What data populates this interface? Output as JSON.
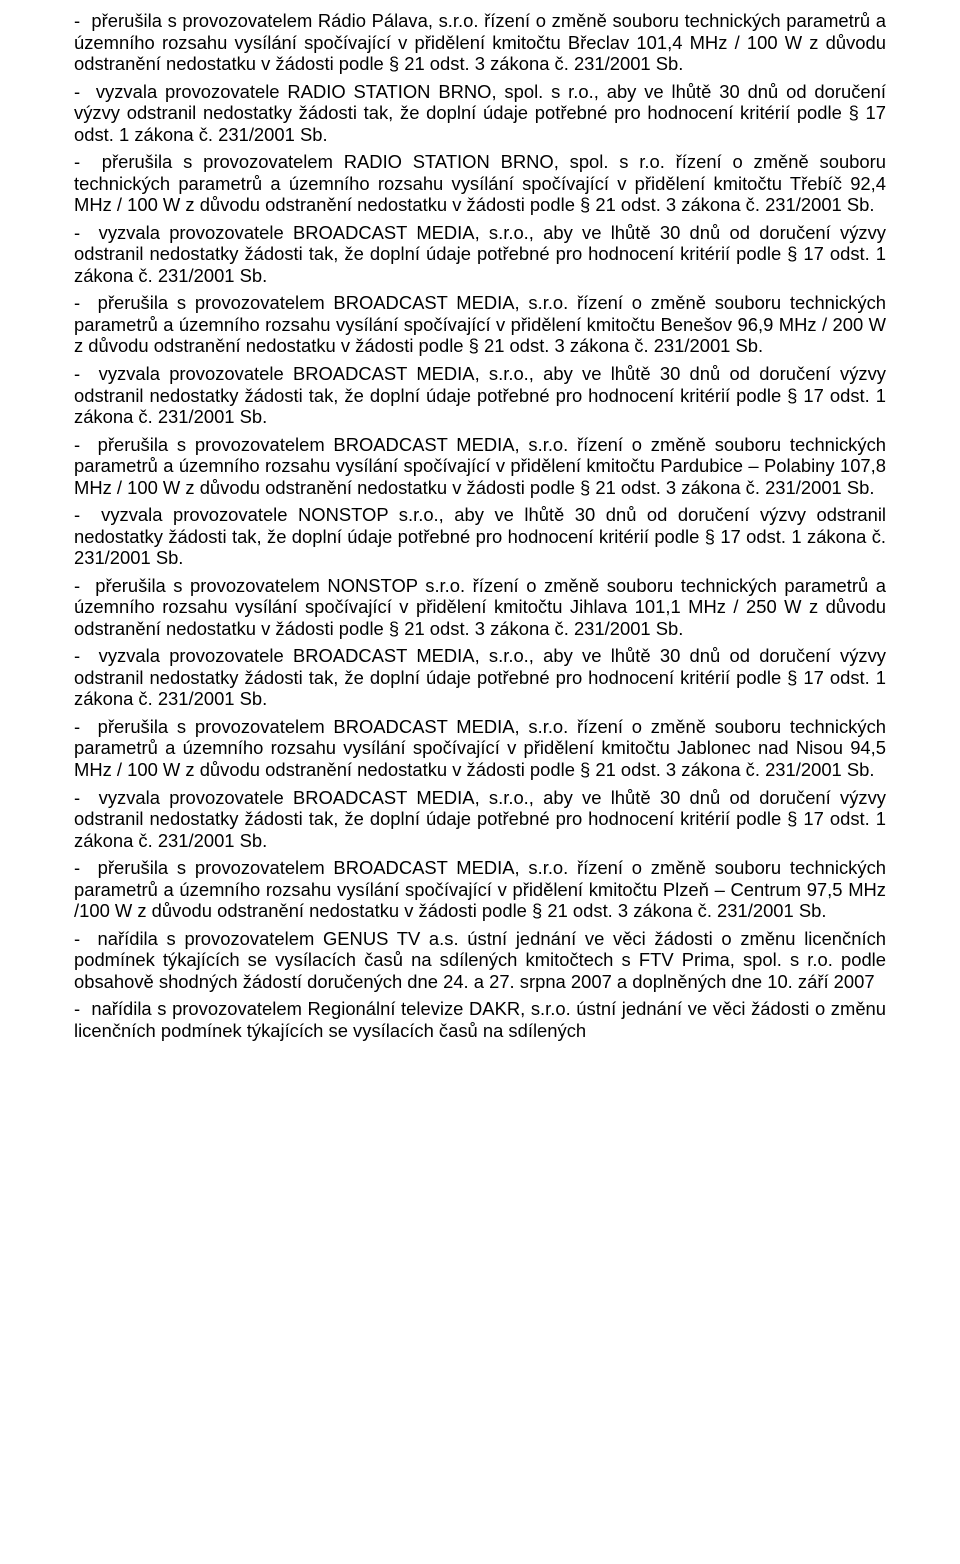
{
  "paragraphs": [
    "-  přerušila s provozovatelem Rádio Pálava, s.r.o. řízení o změně souboru technických parametrů a územního rozsahu vysílání spočívající v přidělení kmitočtu Břeclav 101,4 MHz / 100 W z důvodu odstranění nedostatku v žádosti podle § 21 odst. 3 zákona č. 231/2001 Sb.",
    "-  vyzvala provozovatele RADIO STATION BRNO, spol. s r.o., aby ve lhůtě 30 dnů od doručení výzvy odstranil nedostatky žádosti tak, že doplní údaje potřebné pro hodnocení kritérií podle § 17 odst. 1 zákona č. 231/2001 Sb.",
    "-  přerušila s provozovatelem RADIO STATION BRNO, spol. s r.o. řízení o změně souboru technických parametrů a územního rozsahu vysílání spočívající v přidělení kmitočtu Třebíč 92,4 MHz / 100 W z důvodu odstranění nedostatku v žádosti podle § 21 odst. 3 zákona č. 231/2001 Sb.",
    "-  vyzvala provozovatele BROADCAST MEDIA, s.r.o., aby ve lhůtě 30 dnů od doručení výzvy odstranil nedostatky žádosti tak, že doplní údaje potřebné pro hodnocení kritérií podle § 17 odst. 1 zákona č. 231/2001 Sb.",
    "-  přerušila s provozovatelem BROADCAST MEDIA, s.r.o. řízení o změně souboru technických parametrů a územního rozsahu vysílání spočívající v přidělení kmitočtu Benešov 96,9 MHz / 200 W z důvodu odstranění nedostatku v žádosti podle § 21 odst. 3 zákona č. 231/2001 Sb.",
    "-  vyzvala provozovatele BROADCAST MEDIA, s.r.o., aby ve lhůtě 30 dnů od doručení výzvy odstranil nedostatky žádosti tak, že doplní údaje potřebné pro hodnocení kritérií podle § 17 odst. 1 zákona č. 231/2001 Sb.",
    "-  přerušila s provozovatelem BROADCAST MEDIA, s.r.o. řízení o změně souboru technických parametrů a územního rozsahu vysílání spočívající v přidělení kmitočtu Pardubice – Polabiny 107,8 MHz / 100 W z důvodu odstranění nedostatku v žádosti podle § 21 odst. 3 zákona č. 231/2001 Sb.",
    "-  vyzvala provozovatele NONSTOP s.r.o., aby ve lhůtě 30 dnů od doručení výzvy odstranil nedostatky žádosti tak, že doplní údaje potřebné pro hodnocení kritérií podle § 17 odst. 1 zákona č. 231/2001 Sb.",
    "-  přerušila s provozovatelem NONSTOP s.r.o. řízení o změně souboru technických parametrů a územního rozsahu vysílání spočívající v přidělení kmitočtu Jihlava 101,1 MHz / 250 W z důvodu odstranění nedostatku v žádosti podle § 21 odst. 3 zákona č. 231/2001 Sb.",
    "-  vyzvala provozovatele BROADCAST MEDIA, s.r.o., aby ve lhůtě 30 dnů od doručení výzvy odstranil nedostatky žádosti tak, že doplní údaje potřebné pro hodnocení kritérií podle § 17 odst. 1 zákona č. 231/2001 Sb.",
    "-  přerušila s provozovatelem BROADCAST MEDIA, s.r.o. řízení o změně souboru technických parametrů a územního rozsahu vysílání spočívající v přidělení kmitočtu Jablonec nad Nisou 94,5 MHz / 100 W z důvodu odstranění nedostatku v žádosti podle § 21 odst. 3 zákona č. 231/2001 Sb.",
    "-  vyzvala provozovatele BROADCAST MEDIA, s.r.o., aby ve lhůtě 30 dnů od doručení výzvy odstranil nedostatky žádosti tak, že doplní údaje potřebné pro hodnocení kritérií podle § 17 odst. 1 zákona č. 231/2001 Sb.",
    "-  přerušila s provozovatelem BROADCAST MEDIA, s.r.o. řízení o změně souboru technických parametrů a územního rozsahu vysílání spočívající v přidělení kmitočtu Plzeň – Centrum 97,5 MHz /100 W z důvodu odstranění nedostatku v žádosti podle § 21 odst. 3 zákona č. 231/2001 Sb.",
    "-  nařídila s provozovatelem GENUS TV a.s. ústní jednání ve věci žádosti o změnu licenčních podmínek týkajících se vysílacích časů na sdílených kmitočtech s FTV Prima, spol. s r.o. podle obsahově shodných žádostí doručených dne 24. a 27. srpna 2007 a doplněných dne 10. září 2007",
    "-  nařídila s provozovatelem Regionální televize DAKR, s.r.o. ústní jednání ve věci žádosti o změnu licenčních podmínek týkajících se vysílacích časů na sdílených"
  ]
}
